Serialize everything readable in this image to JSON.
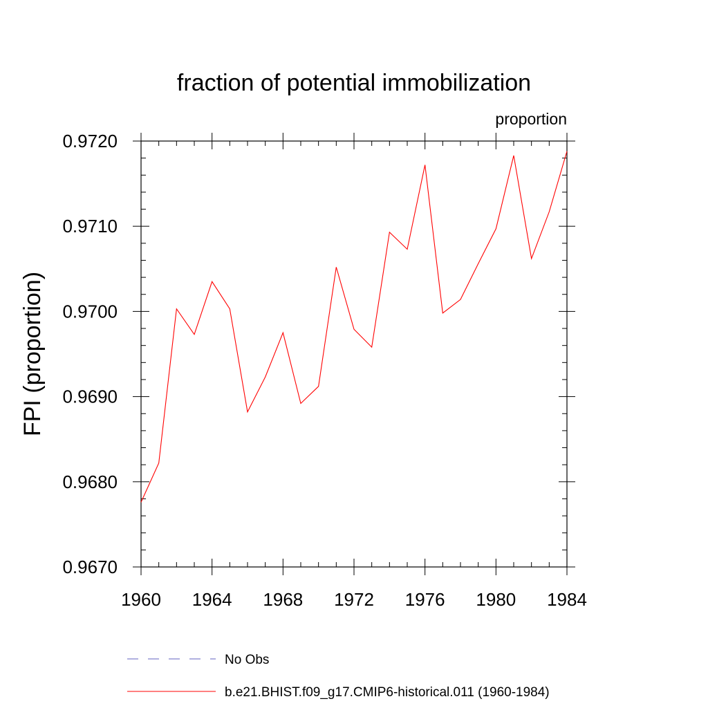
{
  "chart_data": {
    "type": "line",
    "title": "fraction of potential immobilization",
    "units_label": "proportion",
    "ylabel": "FPI  (proportion)",
    "xlabel": "",
    "xlim": [
      1960,
      1984
    ],
    "ylim": [
      0.967,
      0.972
    ],
    "x_ticks": [
      1960,
      1964,
      1968,
      1972,
      1976,
      1980,
      1984
    ],
    "x_tick_labels": [
      "1960",
      "1964",
      "1968",
      "1972",
      "1976",
      "1980",
      "1984"
    ],
    "y_ticks": [
      0.967,
      0.968,
      0.969,
      0.97,
      0.971,
      0.972
    ],
    "y_tick_labels": [
      "0.9670",
      "0.9680",
      "0.9690",
      "0.9700",
      "0.9710",
      "0.9720"
    ],
    "grid": false,
    "legend_position": "bottom",
    "series": [
      {
        "name": "b.e21.BHIST.f09_g17.CMIP6-historical.011 (1960-1984)",
        "color": "#ff0000",
        "style": "solid",
        "x": [
          1960,
          1961,
          1962,
          1963,
          1964,
          1965,
          1966,
          1967,
          1968,
          1969,
          1970,
          1971,
          1972,
          1973,
          1974,
          1975,
          1976,
          1977,
          1978,
          1979,
          1980,
          1981,
          1982,
          1983,
          1984
        ],
        "y": [
          0.96776,
          0.96822,
          0.97003,
          0.96973,
          0.97035,
          0.97003,
          0.96882,
          0.96923,
          0.96975,
          0.96892,
          0.96912,
          0.97052,
          0.96979,
          0.96958,
          0.97093,
          0.97073,
          0.97172,
          0.96998,
          0.97014,
          0.97056,
          0.97097,
          0.97183,
          0.97062,
          0.97117,
          0.97188
        ]
      }
    ],
    "legend": [
      {
        "label": "No Obs",
        "color": "#6060c0",
        "style": "dashed"
      },
      {
        "label": "b.e21.BHIST.f09_g17.CMIP6-historical.011 (1960-1984)",
        "color": "#ff0000",
        "style": "solid"
      }
    ]
  }
}
